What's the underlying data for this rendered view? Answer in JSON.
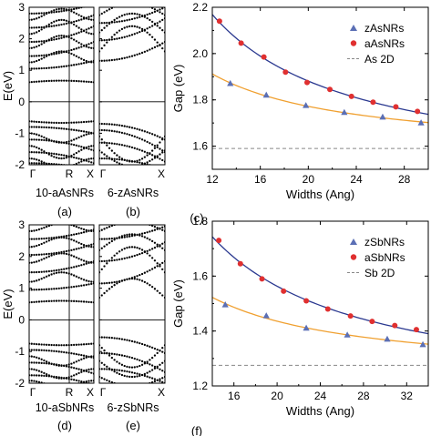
{
  "chart_data": [
    {
      "id": "a",
      "type": "scatter",
      "panel_label": "(a)",
      "sample_label": "10-aAsNRs",
      "ylabel": "E(eV)",
      "ylim": [
        -2,
        3
      ],
      "yticks": [
        -2,
        -1,
        0,
        1,
        2,
        3
      ],
      "xlim": [
        0,
        1
      ],
      "xticks": [
        {
          "x": 0.0,
          "label": "Γ"
        },
        {
          "x": 0.62,
          "label": "R"
        },
        {
          "x": 1.0,
          "label": "X"
        }
      ],
      "fermi_level": 0,
      "bands": [
        {
          "kind": "cond",
          "edge": 0.62,
          "curv": 0.05,
          "shape": "flat"
        },
        {
          "kind": "cond",
          "edge": 1.05,
          "curv": 0.25,
          "shape": "parab"
        },
        {
          "kind": "cond",
          "edge": 1.25,
          "curv": 0.35,
          "shape": "dip"
        },
        {
          "kind": "cond",
          "edge": 1.45,
          "curv": 0.45,
          "shape": "parab"
        },
        {
          "kind": "cond",
          "edge": 1.7,
          "curv": 0.4,
          "shape": "dip"
        },
        {
          "kind": "cond",
          "edge": 1.9,
          "curv": 0.5,
          "shape": "parab"
        },
        {
          "kind": "cond",
          "edge": 2.15,
          "curv": 0.45,
          "shape": "dip"
        },
        {
          "kind": "cond",
          "edge": 2.35,
          "curv": 0.4,
          "shape": "parab"
        },
        {
          "kind": "cond",
          "edge": 2.6,
          "curv": 0.35,
          "shape": "dip"
        },
        {
          "kind": "cond",
          "edge": 2.8,
          "curv": 0.3,
          "shape": "parab"
        },
        {
          "kind": "val",
          "edge": -0.62,
          "curv": 0.05,
          "shape": "flat"
        },
        {
          "kind": "val",
          "edge": -0.8,
          "curv": 0.2,
          "shape": "parab"
        },
        {
          "kind": "val",
          "edge": -1.0,
          "curv": 0.3,
          "shape": "dip"
        },
        {
          "kind": "val",
          "edge": -1.2,
          "curv": 0.35,
          "shape": "parab"
        },
        {
          "kind": "val",
          "edge": -1.4,
          "curv": 0.4,
          "shape": "dip"
        },
        {
          "kind": "val",
          "edge": -1.6,
          "curv": 0.35,
          "shape": "parab"
        },
        {
          "kind": "val",
          "edge": -1.8,
          "curv": 0.3,
          "shape": "dip"
        },
        {
          "kind": "val",
          "edge": -1.95,
          "curv": 0.2,
          "shape": "parab"
        }
      ]
    },
    {
      "id": "b",
      "type": "scatter",
      "panel_label": "(b)",
      "sample_label": "6-zAsNRs",
      "ylim": [
        -2,
        3
      ],
      "xlim": [
        0,
        1
      ],
      "xticks": [
        {
          "x": 0.0,
          "label": "Γ"
        },
        {
          "x": 1.0,
          "label": "X"
        }
      ],
      "fermi_level": 0,
      "bands": [
        {
          "kind": "cond",
          "edge": 1.3,
          "curv": 0.6,
          "shape": "parab"
        },
        {
          "kind": "cond",
          "edge": 1.6,
          "curv": 0.8,
          "shape": "hump"
        },
        {
          "kind": "cond",
          "edge": 1.95,
          "curv": 0.7,
          "shape": "parab"
        },
        {
          "kind": "cond",
          "edge": 2.2,
          "curv": 0.6,
          "shape": "hump"
        },
        {
          "kind": "cond",
          "edge": 2.5,
          "curv": 0.5,
          "shape": "parab"
        },
        {
          "kind": "cond",
          "edge": 2.75,
          "curv": 0.4,
          "shape": "hump"
        },
        {
          "kind": "val",
          "edge": -0.7,
          "curv": 0.5,
          "shape": "parab"
        },
        {
          "kind": "val",
          "edge": -0.9,
          "curv": 0.7,
          "shape": "parab"
        },
        {
          "kind": "val",
          "edge": -1.1,
          "curv": 0.8,
          "shape": "hump"
        },
        {
          "kind": "val",
          "edge": -1.3,
          "curv": 0.6,
          "shape": "parab"
        },
        {
          "kind": "val",
          "edge": -1.55,
          "curv": 0.5,
          "shape": "hump"
        },
        {
          "kind": "val",
          "edge": -1.8,
          "curv": 0.35,
          "shape": "parab"
        }
      ]
    },
    {
      "id": "c",
      "type": "scatter",
      "panel_label": "(c)",
      "xlabel": "Widths (Ang)",
      "ylabel": "Gap (eV)",
      "xlim": [
        12,
        30
      ],
      "ylim": [
        1.5,
        2.2
      ],
      "xticks": [
        12,
        16,
        20,
        24,
        28
      ],
      "yticks": [
        1.6,
        1.8,
        2.0,
        2.2
      ],
      "legend": "top-right",
      "reference": {
        "name": "As 2D",
        "value": 1.59
      },
      "series": [
        {
          "name": "zAsNRs",
          "marker": "triangle",
          "color": "#5b6fb5",
          "fit_color": "#f0a030",
          "x": [
            13.5,
            16.5,
            19.8,
            23.0,
            26.2,
            29.4
          ],
          "y": [
            1.87,
            1.82,
            1.775,
            1.745,
            1.725,
            1.7
          ]
        },
        {
          "name": "aAsNRs",
          "marker": "circle",
          "color": "#e03030",
          "fit_color": "#2b3990",
          "x": [
            12.6,
            14.4,
            16.3,
            18.1,
            19.9,
            21.8,
            23.6,
            25.4,
            27.3,
            29.1
          ],
          "y": [
            2.14,
            2.045,
            1.985,
            1.92,
            1.875,
            1.845,
            1.815,
            1.79,
            1.77,
            1.75
          ]
        }
      ]
    },
    {
      "id": "d",
      "type": "scatter",
      "panel_label": "(d)",
      "sample_label": "10-aSbNRs",
      "ylabel": "E(eV)",
      "ylim": [
        -2,
        3
      ],
      "yticks": [
        -2,
        -1,
        0,
        1,
        2,
        3
      ],
      "xlim": [
        0,
        1
      ],
      "xticks": [
        {
          "x": 0.0,
          "label": "Γ"
        },
        {
          "x": 0.62,
          "label": "R"
        },
        {
          "x": 1.0,
          "label": "X"
        }
      ],
      "fermi_level": 0,
      "bands": [
        {
          "kind": "cond",
          "edge": 0.55,
          "curv": 0.05,
          "shape": "flat"
        },
        {
          "kind": "cond",
          "edge": 0.95,
          "curv": 0.2,
          "shape": "parab"
        },
        {
          "kind": "cond",
          "edge": 1.2,
          "curv": 0.3,
          "shape": "dip"
        },
        {
          "kind": "cond",
          "edge": 1.5,
          "curv": 0.35,
          "shape": "parab"
        },
        {
          "kind": "cond",
          "edge": 1.8,
          "curv": 0.3,
          "shape": "dip"
        },
        {
          "kind": "cond",
          "edge": 2.05,
          "curv": 0.35,
          "shape": "parab"
        },
        {
          "kind": "cond",
          "edge": 2.3,
          "curv": 0.3,
          "shape": "dip"
        },
        {
          "kind": "cond",
          "edge": 2.55,
          "curv": 0.3,
          "shape": "parab"
        },
        {
          "kind": "cond",
          "edge": 2.8,
          "curv": 0.25,
          "shape": "dip"
        },
        {
          "kind": "val",
          "edge": -0.75,
          "curv": 0.05,
          "shape": "flat"
        },
        {
          "kind": "val",
          "edge": -0.95,
          "curv": 0.25,
          "shape": "parab"
        },
        {
          "kind": "val",
          "edge": -1.15,
          "curv": 0.3,
          "shape": "dip"
        },
        {
          "kind": "val",
          "edge": -1.35,
          "curv": 0.35,
          "shape": "parab"
        },
        {
          "kind": "val",
          "edge": -1.55,
          "curv": 0.3,
          "shape": "dip"
        },
        {
          "kind": "val",
          "edge": -1.75,
          "curv": 0.3,
          "shape": "parab"
        },
        {
          "kind": "val",
          "edge": -1.92,
          "curv": 0.2,
          "shape": "dip"
        }
      ]
    },
    {
      "id": "e",
      "type": "scatter",
      "panel_label": "(e)",
      "sample_label": "6-zSbNRs",
      "ylim": [
        -2,
        3
      ],
      "xlim": [
        0,
        1
      ],
      "xticks": [
        {
          "x": 0.0,
          "label": "Γ"
        },
        {
          "x": 1.0,
          "label": "X"
        }
      ],
      "fermi_level": 0,
      "bands": [
        {
          "kind": "cond",
          "edge": 0.7,
          "curv": 0.6,
          "shape": "hump"
        },
        {
          "kind": "cond",
          "edge": 1.15,
          "curv": 0.7,
          "shape": "parab"
        },
        {
          "kind": "cond",
          "edge": 1.5,
          "curv": 0.8,
          "shape": "hump"
        },
        {
          "kind": "cond",
          "edge": 1.85,
          "curv": 0.6,
          "shape": "parab"
        },
        {
          "kind": "cond",
          "edge": 2.2,
          "curv": 0.5,
          "shape": "hump"
        },
        {
          "kind": "cond",
          "edge": 2.55,
          "curv": 0.4,
          "shape": "parab"
        },
        {
          "kind": "cond",
          "edge": 2.8,
          "curv": 0.3,
          "shape": "hump"
        },
        {
          "kind": "val",
          "edge": -0.55,
          "curv": 0.5,
          "shape": "parab"
        },
        {
          "kind": "val",
          "edge": -0.8,
          "curv": 0.7,
          "shape": "hump"
        },
        {
          "kind": "val",
          "edge": -1.05,
          "curv": 0.6,
          "shape": "parab"
        },
        {
          "kind": "val",
          "edge": -1.3,
          "curv": 0.5,
          "shape": "hump"
        },
        {
          "kind": "val",
          "edge": -1.55,
          "curv": 0.45,
          "shape": "parab"
        },
        {
          "kind": "val",
          "edge": -1.8,
          "curv": 0.3,
          "shape": "hump"
        }
      ]
    },
    {
      "id": "f",
      "type": "scatter",
      "panel_label": "(f)",
      "xlabel": "Widths (Ang)",
      "ylabel": "Gap (eV)",
      "xlim": [
        14,
        34
      ],
      "ylim": [
        1.2,
        1.8
      ],
      "xticks": [
        16,
        20,
        24,
        28,
        32
      ],
      "yticks": [
        1.2,
        1.4,
        1.6,
        1.8
      ],
      "legend": "top-right",
      "reference": {
        "name": "Sb 2D",
        "value": 1.275
      },
      "series": [
        {
          "name": "zSbNRs",
          "marker": "triangle",
          "color": "#5b6fb5",
          "fit_color": "#f0a030",
          "x": [
            15.2,
            19.0,
            22.7,
            26.5,
            30.2,
            33.5
          ],
          "y": [
            1.495,
            1.455,
            1.41,
            1.385,
            1.37,
            1.35
          ]
        },
        {
          "name": "aSbNRs",
          "marker": "circle",
          "color": "#e03030",
          "fit_color": "#2b3990",
          "x": [
            14.6,
            16.6,
            18.6,
            20.6,
            22.7,
            24.7,
            26.8,
            28.8,
            30.9,
            32.9
          ],
          "y": [
            1.73,
            1.645,
            1.59,
            1.545,
            1.51,
            1.48,
            1.455,
            1.435,
            1.42,
            1.405
          ]
        }
      ]
    }
  ]
}
